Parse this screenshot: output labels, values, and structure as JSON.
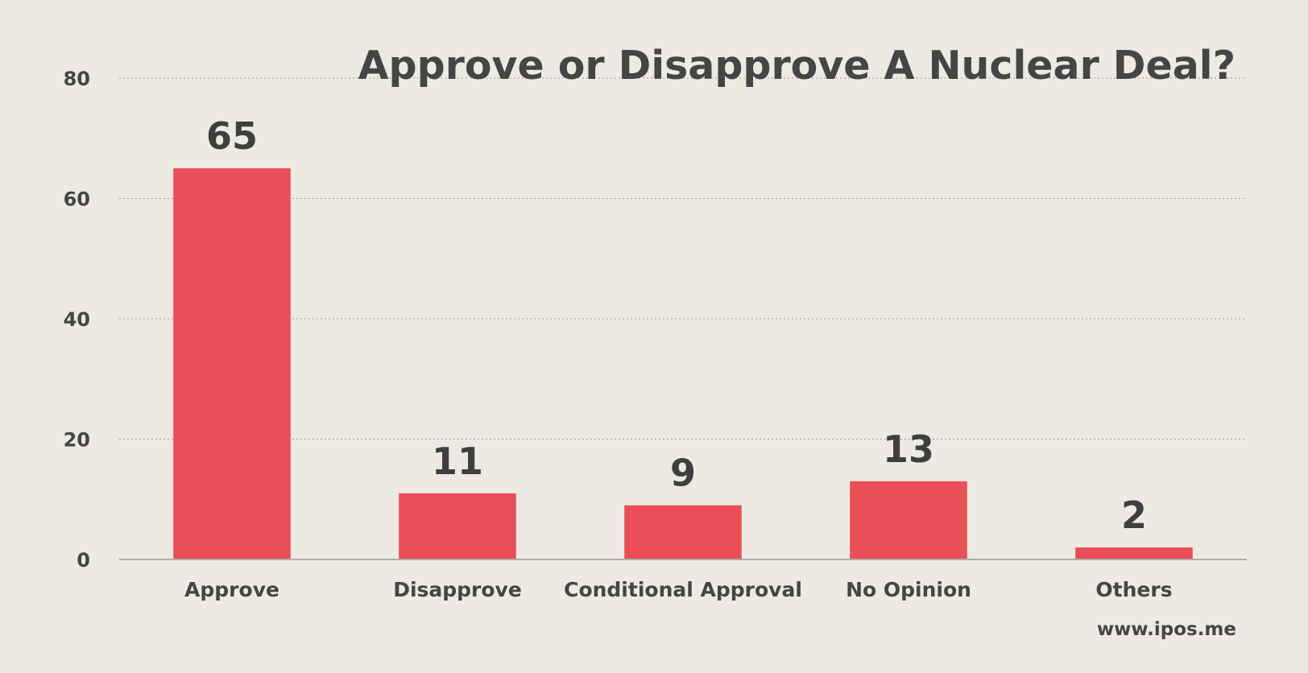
{
  "chart_data": {
    "type": "bar",
    "title": "Approve or Disapprove A Nuclear Deal?",
    "categories": [
      "Approve",
      "Disapprove",
      "Conditional Approval",
      "No Opinion",
      "Others"
    ],
    "values": [
      65,
      11,
      9,
      13,
      2
    ],
    "ylim": [
      0,
      80
    ],
    "yticks": [
      0,
      20,
      40,
      60,
      80
    ],
    "xlabel": "",
    "ylabel": "",
    "grid": true,
    "bar_color": "#ea4e56",
    "text_color": "#454545",
    "background_color": "#edeae4"
  },
  "source_text": "www.ipos.me"
}
